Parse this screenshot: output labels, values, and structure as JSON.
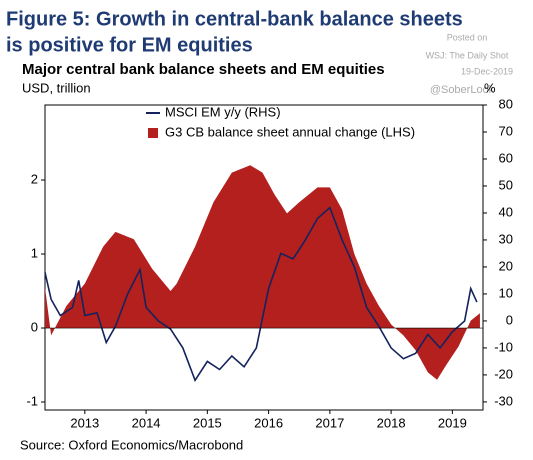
{
  "chart_data": {
    "type": "area-line",
    "title": "Figure 5: Growth in central-bank balance sheets",
    "title_line2": "is positive for EM equities",
    "subtitle": "Major central bank balance sheets and EM equities",
    "y_label": "USD, trillion",
    "y2_label": "%",
    "watermark": [
      "Posted on",
      "WSJ: The Daily Shot",
      "19-Dec-2019",
      "@SoberLook"
    ],
    "source": "Source: Oxford Economics/Macrobond",
    "xlim": [
      2012.85,
      2020.0
    ],
    "xticks": [
      {
        "value": 2013.5,
        "label": "2013"
      },
      {
        "value": 2014.5,
        "label": "2014"
      },
      {
        "value": 2015.5,
        "label": "2015"
      },
      {
        "value": 2016.5,
        "label": "2016"
      },
      {
        "value": 2017.5,
        "label": "2017"
      },
      {
        "value": 2018.5,
        "label": "2018"
      },
      {
        "value": 2019.5,
        "label": "2019"
      }
    ],
    "ylim": [
      -1.108,
      3.014
    ],
    "yticks": [
      -1,
      0,
      1,
      2
    ],
    "y2lim": [
      -33,
      80
    ],
    "y2ticks": [
      -30,
      -20,
      -10,
      0,
      10,
      20,
      30,
      40,
      50,
      60,
      70,
      80
    ],
    "series": [
      {
        "name": "MSCI EM y/y (RHS)",
        "color": "#14235e",
        "axis": "y2",
        "kind": "line",
        "x": [
          2012.85,
          2012.95,
          2013.1,
          2013.3,
          2013.4,
          2013.5,
          2013.7,
          2013.85,
          2014.0,
          2014.2,
          2014.4,
          2014.5,
          2014.7,
          2014.9,
          2015.1,
          2015.3,
          2015.5,
          2015.7,
          2015.9,
          2016.1,
          2016.3,
          2016.5,
          2016.7,
          2016.9,
          2017.1,
          2017.3,
          2017.5,
          2017.7,
          2017.9,
          2018.1,
          2018.3,
          2018.5,
          2018.7,
          2018.9,
          2019.1,
          2019.3,
          2019.5,
          2019.7,
          2019.8,
          2019.9
        ],
        "values": [
          18,
          8,
          2,
          5,
          15,
          2,
          3,
          -8,
          -2,
          10,
          19,
          5,
          0,
          -3,
          -10,
          -22,
          -15,
          -18,
          -13,
          -17,
          -10,
          12,
          25,
          23,
          30,
          38,
          42,
          30,
          20,
          5,
          -2,
          -10,
          -14,
          -12,
          -5,
          -10,
          -4,
          0,
          12,
          7
        ]
      },
      {
        "name": "G3 CB balance sheet annual change (LHS)",
        "color": "#b3201e",
        "axis": "y",
        "kind": "area",
        "x": [
          2012.85,
          2012.95,
          2013.2,
          2013.5,
          2013.8,
          2014.0,
          2014.3,
          2014.6,
          2014.9,
          2015.0,
          2015.3,
          2015.6,
          2015.9,
          2016.2,
          2016.4,
          2016.6,
          2016.8,
          2017.0,
          2017.3,
          2017.5,
          2017.7,
          2017.9,
          2018.1,
          2018.3,
          2018.5,
          2018.7,
          2018.9,
          2019.1,
          2019.25,
          2019.4,
          2019.6,
          2019.8,
          2019.95
        ],
        "values": [
          0.55,
          -0.1,
          0.3,
          0.6,
          1.1,
          1.3,
          1.2,
          0.8,
          0.5,
          0.6,
          1.1,
          1.7,
          2.1,
          2.2,
          2.1,
          1.8,
          1.55,
          1.7,
          1.9,
          1.9,
          1.6,
          1.0,
          0.6,
          0.3,
          0.05,
          -0.1,
          -0.3,
          -0.6,
          -0.7,
          -0.5,
          -0.25,
          0.1,
          0.2
        ]
      }
    ]
  }
}
